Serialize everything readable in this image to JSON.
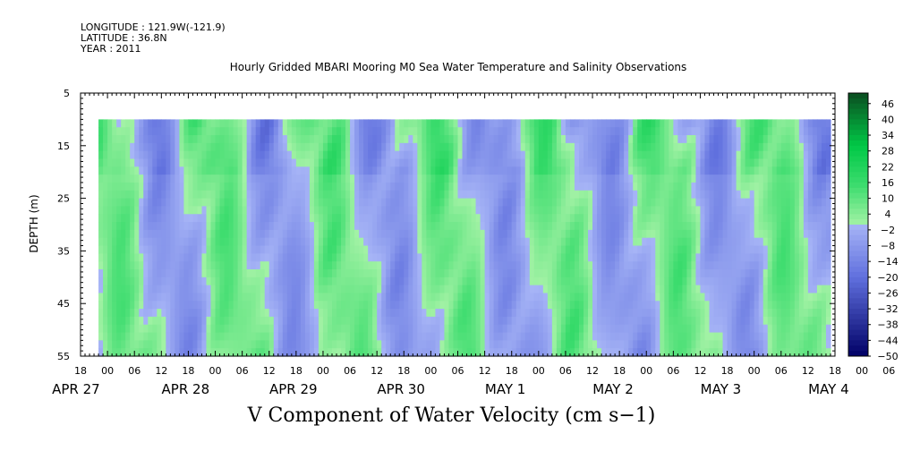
{
  "header": {
    "longitude": "LONGITUDE : 121.9W(-121.9)",
    "latitude": "LATITUDE : 36.8N",
    "year": "YEAR : 2011"
  },
  "chart_data": {
    "type": "heatmap",
    "title": "Hourly Gridded MBARI Mooring M0 Sea Water Temperature and Salinity Observations",
    "xlabel": "",
    "ylabel": "DEPTH (m)",
    "caption": "V Component of Water Velocity (cm s−1)",
    "x_hours": {
      "start": "APR 27 18:00",
      "end": "MAY 4 18:00"
    },
    "data_hours": {
      "start": "APR 27 22:00",
      "end": "MAY 4 17:00"
    },
    "ylim": [
      55,
      5
    ],
    "depth_ticks": [
      "5",
      "15",
      "25",
      "35",
      "45",
      "55"
    ],
    "data_depth_range": [
      10,
      55
    ],
    "hour_tick_labels": [
      "18",
      "00",
      "06",
      "12",
      "18",
      "00",
      "06",
      "12",
      "18",
      "00",
      "06",
      "12",
      "18",
      "00",
      "06",
      "12",
      "18",
      "00",
      "06",
      "12",
      "18",
      "00",
      "06",
      "12",
      "18",
      "00",
      "06",
      "12",
      "18",
      "00",
      "06",
      "12"
    ],
    "date_labels": [
      "APR 27",
      "APR 28",
      "APR 29",
      "APR 30",
      "MAY  1",
      "MAY  2",
      "MAY  3",
      "MAY  4"
    ],
    "colorbar": {
      "levels": [
        "46",
        "40",
        "34",
        "28",
        "22",
        "16",
        "10",
        "4",
        "-2",
        "-8",
        "-14",
        "-20",
        "-26",
        "-32",
        "-38",
        "-44",
        "-50"
      ],
      "range": [
        -50,
        50
      ],
      "colors": {
        "negative_strong": "#000066",
        "negative_weak": "#a6b4f6",
        "positive_weak": "#a3f2a5",
        "positive_strong": "#0a4d20"
      }
    },
    "dominant_pattern_by_time": [
      {
        "hours": "APR 27 22-APR 28 03",
        "sign": "positive"
      },
      {
        "hours": "APR 28 04-APR 28 14",
        "sign": "negative"
      },
      {
        "hours": "APR 28 15-APR 29 00",
        "sign": "positive"
      },
      {
        "hours": "APR 29 01-APR 29 09",
        "sign": "negative"
      },
      {
        "hours": "APR 29 10-APR 29 17",
        "sign": "positive"
      },
      {
        "hours": "APR 29 18-APR 30 02",
        "sign": "negative"
      },
      {
        "hours": "APR 30 03-APR 30 15",
        "sign": "positive"
      },
      {
        "hours": "APR 30 16-MAY 1 08",
        "sign": "negative"
      },
      {
        "hours": "MAY 1 09-MAY 1 20",
        "sign": "positive"
      },
      {
        "hours": "MAY 1 21-MAY 2 07",
        "sign": "negative"
      },
      {
        "hours": "MAY 2 08-MAY 2 19",
        "sign": "positive"
      },
      {
        "hours": "MAY 2 20-MAY 3 10",
        "sign": "negative"
      },
      {
        "hours": "MAY 3 11-MAY 3 23",
        "sign": "positive"
      },
      {
        "hours": "MAY 4 00-MAY 4 17",
        "sign": "mixed"
      }
    ]
  }
}
